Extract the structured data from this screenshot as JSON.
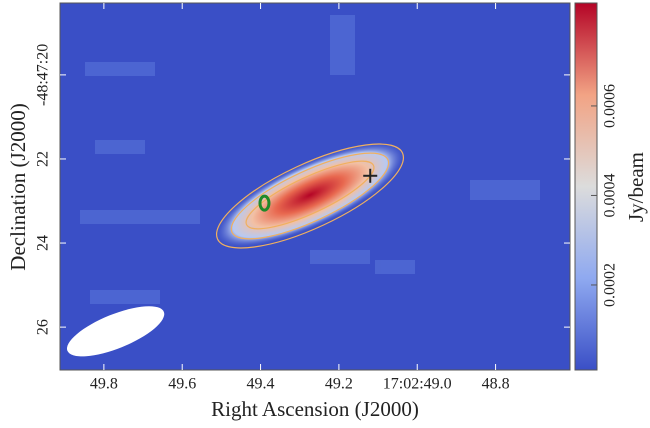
{
  "chart_data": {
    "type": "heatmap",
    "xlabel": "Right Ascension (J2000)",
    "ylabel": "Declination (J2000)",
    "colorbar_label": "Jy/beam",
    "xlim": [
      49.912,
      48.61
    ],
    "xticks": [
      49.8,
      49.6,
      49.4,
      49.2,
      {
        "value": 49.0,
        "label": "17:02:49.0"
      },
      48.8
    ],
    "ylim": [
      18.29,
      27.02
    ],
    "yticks": [
      {
        "value": 20,
        "label": "-48:47:20"
      },
      22,
      24,
      26
    ],
    "clim": [
      1e-05,
      0.00083
    ],
    "cticks": [
      0.0002,
      0.0004,
      0.0006
    ],
    "colormap": [
      "#3a4fc6",
      "#8fa9f0",
      "#dcdcdc",
      "#f2a384",
      "#b40426"
    ],
    "cross": {
      "x": 49.12,
      "y": 22.4,
      "color": "#222222"
    },
    "source": {
      "x": 49.39,
      "y": 23.05,
      "color": "#1f8a2a"
    },
    "beam": {
      "x": 49.77,
      "y": 26.1,
      "color": "#ffffff"
    }
  }
}
